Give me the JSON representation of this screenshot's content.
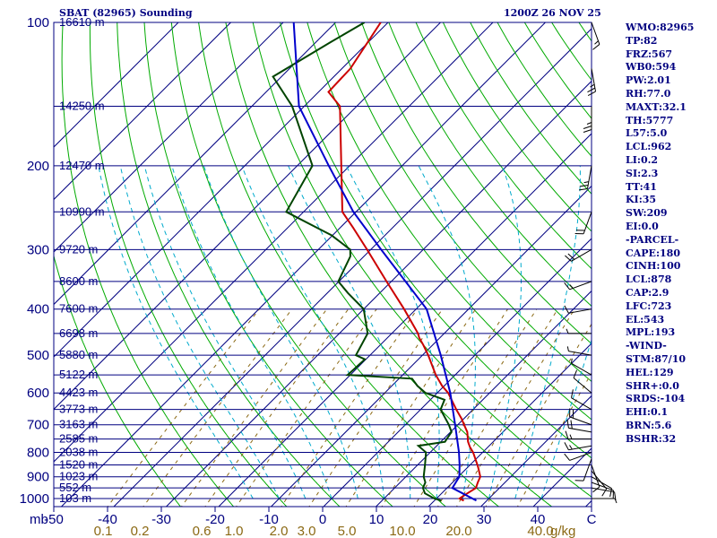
{
  "chart_data": {
    "type": "skew-t",
    "title_left": "SBAT (82965) Sounding",
    "title_right": "1200Z 26 NOV 25",
    "units_pressure": "mb",
    "units_mixing_ratio": "g/kg",
    "pressure_range": [
      100,
      1050
    ],
    "temperature_range": [
      -50,
      50
    ],
    "pressure_ticks": [
      {
        "p": 100,
        "label": "100"
      },
      {
        "p": 200,
        "label": "200"
      },
      {
        "p": 300,
        "label": "300"
      },
      {
        "p": 400,
        "label": "400"
      },
      {
        "p": 500,
        "label": "500"
      },
      {
        "p": 600,
        "label": "600"
      },
      {
        "p": 700,
        "label": "700"
      },
      {
        "p": 800,
        "label": "800"
      },
      {
        "p": 900,
        "label": "900"
      },
      {
        "p": 1000,
        "label": "1000"
      }
    ],
    "temperature_ticks": [
      "-50",
      "-40",
      "-30",
      "-20",
      "-10",
      "0",
      "10",
      "20",
      "30",
      "40",
      "C"
    ],
    "mixing_ratio_ticks": [
      {
        "value": 0.1,
        "label": "0.1"
      },
      {
        "value": 0.2,
        "label": "0.2"
      },
      {
        "value": 0.6,
        "label": "0.6"
      },
      {
        "value": 1.0,
        "label": "1.0"
      },
      {
        "value": 2.0,
        "label": "2.0"
      },
      {
        "value": 3.0,
        "label": "3.0"
      },
      {
        "value": 5.0,
        "label": "5.0"
      },
      {
        "value": 10.0,
        "label": "10.0"
      },
      {
        "value": 20.0,
        "label": "20.0"
      },
      {
        "value": 40.0,
        "label": "40.0"
      }
    ],
    "heights": [
      {
        "p": 100,
        "label": "16610 m"
      },
      {
        "p": 150,
        "label": "14250 m"
      },
      {
        "p": 200,
        "label": "12470 m"
      },
      {
        "p": 250,
        "label": "10990 m"
      },
      {
        "p": 300,
        "label": "9720 m"
      },
      {
        "p": 350,
        "label": "8600 m"
      },
      {
        "p": 400,
        "label": "7600 m"
      },
      {
        "p": 450,
        "label": "6698 m"
      },
      {
        "p": 500,
        "label": "5880 m"
      },
      {
        "p": 550,
        "label": "5122 m"
      },
      {
        "p": 600,
        "label": "4423 m"
      },
      {
        "p": 650,
        "label": "3773 m"
      },
      {
        "p": 700,
        "label": "3163 m"
      },
      {
        "p": 750,
        "label": "2585 m"
      },
      {
        "p": 800,
        "label": "2038 m"
      },
      {
        "p": 850,
        "label": "1520 m"
      },
      {
        "p": 900,
        "label": "1023 m"
      },
      {
        "p": 950,
        "label": "552 m"
      },
      {
        "p": 1000,
        "label": "103 m"
      }
    ],
    "series": [
      {
        "name": "temperature",
        "color": "#cc0000",
        "points": [
          {
            "p": 1010,
            "t": 25.6
          },
          {
            "p": 1000,
            "t": 24.4
          },
          {
            "p": 980,
            "t": 24.8
          },
          {
            "p": 950,
            "t": 25.5
          },
          {
            "p": 925,
            "t": 24.8
          },
          {
            "p": 900,
            "t": 24.2
          },
          {
            "p": 860,
            "t": 22.0
          },
          {
            "p": 850,
            "t": 21.4
          },
          {
            "p": 800,
            "t": 18.2
          },
          {
            "p": 780,
            "t": 16.6
          },
          {
            "p": 760,
            "t": 15.2
          },
          {
            "p": 725,
            "t": 13.2
          },
          {
            "p": 700,
            "t": 11.2
          },
          {
            "p": 680,
            "t": 9.6
          },
          {
            "p": 650,
            "t": 6.8
          },
          {
            "p": 600,
            "t": 2.1
          },
          {
            "p": 580,
            "t": -0.4
          },
          {
            "p": 550,
            "t": -3.7
          },
          {
            "p": 500,
            "t": -8.9
          },
          {
            "p": 475,
            "t": -11.9
          },
          {
            "p": 460,
            "t": -13.9
          },
          {
            "p": 450,
            "t": -15.0
          },
          {
            "p": 400,
            "t": -22.3
          },
          {
            "p": 350,
            "t": -30.9
          },
          {
            "p": 300,
            "t": -40.7
          },
          {
            "p": 270,
            "t": -47.5
          },
          {
            "p": 250,
            "t": -52.6
          },
          {
            "p": 200,
            "t": -61.6
          },
          {
            "p": 150,
            "t": -73.2
          },
          {
            "p": 140,
            "t": -78.1
          },
          {
            "p": 125,
            "t": -78.4
          },
          {
            "p": 100,
            "t": -81.4
          }
        ]
      },
      {
        "name": "dewpoint",
        "color": "#004400",
        "points": [
          {
            "p": 1010,
            "t": 21.3
          },
          {
            "p": 1000,
            "t": 19.6
          },
          {
            "p": 975,
            "t": 16.8
          },
          {
            "p": 950,
            "t": 15.4
          },
          {
            "p": 925,
            "t": 14.8
          },
          {
            "p": 900,
            "t": 13.4
          },
          {
            "p": 850,
            "t": 11.4
          },
          {
            "p": 800,
            "t": 9.2
          },
          {
            "p": 775,
            "t": 6.5
          },
          {
            "p": 760,
            "t": 10.8
          },
          {
            "p": 750,
            "t": 10.6
          },
          {
            "p": 725,
            "t": 10.2
          },
          {
            "p": 700,
            "t": 8.3
          },
          {
            "p": 650,
            "t": 3.8
          },
          {
            "p": 620,
            "t": 2.7
          },
          {
            "p": 600,
            "t": -2.2
          },
          {
            "p": 580,
            "t": -5.1
          },
          {
            "p": 560,
            "t": -7.5
          },
          {
            "p": 550,
            "t": -20.5
          },
          {
            "p": 510,
            "t": -20.2
          },
          {
            "p": 500,
            "t": -22.7
          },
          {
            "p": 450,
            "t": -24.6
          },
          {
            "p": 400,
            "t": -30.0
          },
          {
            "p": 370,
            "t": -36.1
          },
          {
            "p": 350,
            "t": -40.1
          },
          {
            "p": 310,
            "t": -42.6
          },
          {
            "p": 300,
            "t": -43.9
          },
          {
            "p": 280,
            "t": -50.2
          },
          {
            "p": 250,
            "t": -63.3
          },
          {
            "p": 200,
            "t": -67.1
          },
          {
            "p": 150,
            "t": -82.3
          },
          {
            "p": 130,
            "t": -91.6
          },
          {
            "p": 110,
            "t": -87.2
          },
          {
            "p": 100,
            "t": -84.5
          }
        ]
      },
      {
        "name": "parcel",
        "color": "#0000cc",
        "points": [
          {
            "p": 1010,
            "t": 28.0
          },
          {
            "p": 950,
            "t": 21.0
          },
          {
            "p": 900,
            "t": 20.2
          },
          {
            "p": 850,
            "t": 18.0
          },
          {
            "p": 800,
            "t": 15.5
          },
          {
            "p": 700,
            "t": 9.5
          },
          {
            "p": 600,
            "t": 2.5
          },
          {
            "p": 500,
            "t": -6.5
          },
          {
            "p": 400,
            "t": -18.0
          },
          {
            "p": 300,
            "t": -38.0
          },
          {
            "p": 250,
            "t": -50.5
          },
          {
            "p": 200,
            "t": -64.0
          },
          {
            "p": 150,
            "t": -81.0
          },
          {
            "p": 100,
            "t": -98.0
          }
        ]
      }
    ],
    "wind_barbs": [
      {
        "p": 1000,
        "dir": 90,
        "kt": 5
      },
      {
        "p": 950,
        "dir": 100,
        "kt": 10
      },
      {
        "p": 925,
        "dir": 110,
        "kt": 10
      },
      {
        "p": 900,
        "dir": 120,
        "kt": 10
      },
      {
        "p": 875,
        "dir": 140,
        "kt": 10
      },
      {
        "p": 850,
        "dir": 160,
        "kt": 10
      },
      {
        "p": 825,
        "dir": 200,
        "kt": 10
      },
      {
        "p": 800,
        "dir": 250,
        "kt": 10
      },
      {
        "p": 775,
        "dir": 260,
        "kt": 15
      },
      {
        "p": 750,
        "dir": 270,
        "kt": 15
      },
      {
        "p": 725,
        "dir": 280,
        "kt": 20
      },
      {
        "p": 700,
        "dir": 290,
        "kt": 20
      },
      {
        "p": 650,
        "dir": 300,
        "kt": 10
      },
      {
        "p": 600,
        "dir": 310,
        "kt": 10
      },
      {
        "p": 550,
        "dir": 300,
        "kt": 5
      },
      {
        "p": 500,
        "dir": 280,
        "kt": 5
      },
      {
        "p": 450,
        "dir": 270,
        "kt": 5
      },
      {
        "p": 400,
        "dir": 260,
        "kt": 10
      },
      {
        "p": 350,
        "dir": 250,
        "kt": 15
      },
      {
        "p": 300,
        "dir": 240,
        "kt": 20
      },
      {
        "p": 250,
        "dir": 200,
        "kt": 20
      },
      {
        "p": 200,
        "dir": 190,
        "kt": 25
      },
      {
        "p": 150,
        "dir": 180,
        "kt": 25
      },
      {
        "p": 125,
        "dir": 170,
        "kt": 25
      },
      {
        "p": 100,
        "dir": 160,
        "kt": 15
      }
    ],
    "indices": [
      "WMO:82965",
      "TP:82",
      "FRZ:567",
      "WB0:594",
      "PW:2.01",
      "RH:77.0",
      "MAXT:32.1",
      "TH:5777",
      "L57:5.0",
      "LCL:962",
      "LI:0.2",
      "SI:2.3",
      "TT:41",
      "KI:35",
      "SW:209",
      "EI:0.0",
      "-PARCEL-",
      "CAPE:180",
      "CINH:100",
      "LCL:878",
      "CAP:2.9",
      "LFC:723",
      "EL:543",
      "MPL:193",
      "-WIND-",
      "STM:87/10",
      "HEL:129",
      "SHR+:0.0",
      "SRDS:-104",
      "EHI:0.1",
      "BRN:5.6",
      "BSHR:32"
    ]
  },
  "colors": {
    "isobar": "#000080",
    "isotherm": "#000080",
    "dry_adiabat": "#00aa00",
    "moist_adiabat": "#00aacc",
    "mixing_ratio": "#8b6914",
    "text": "#000080",
    "mixing_label": "#8b6914"
  }
}
